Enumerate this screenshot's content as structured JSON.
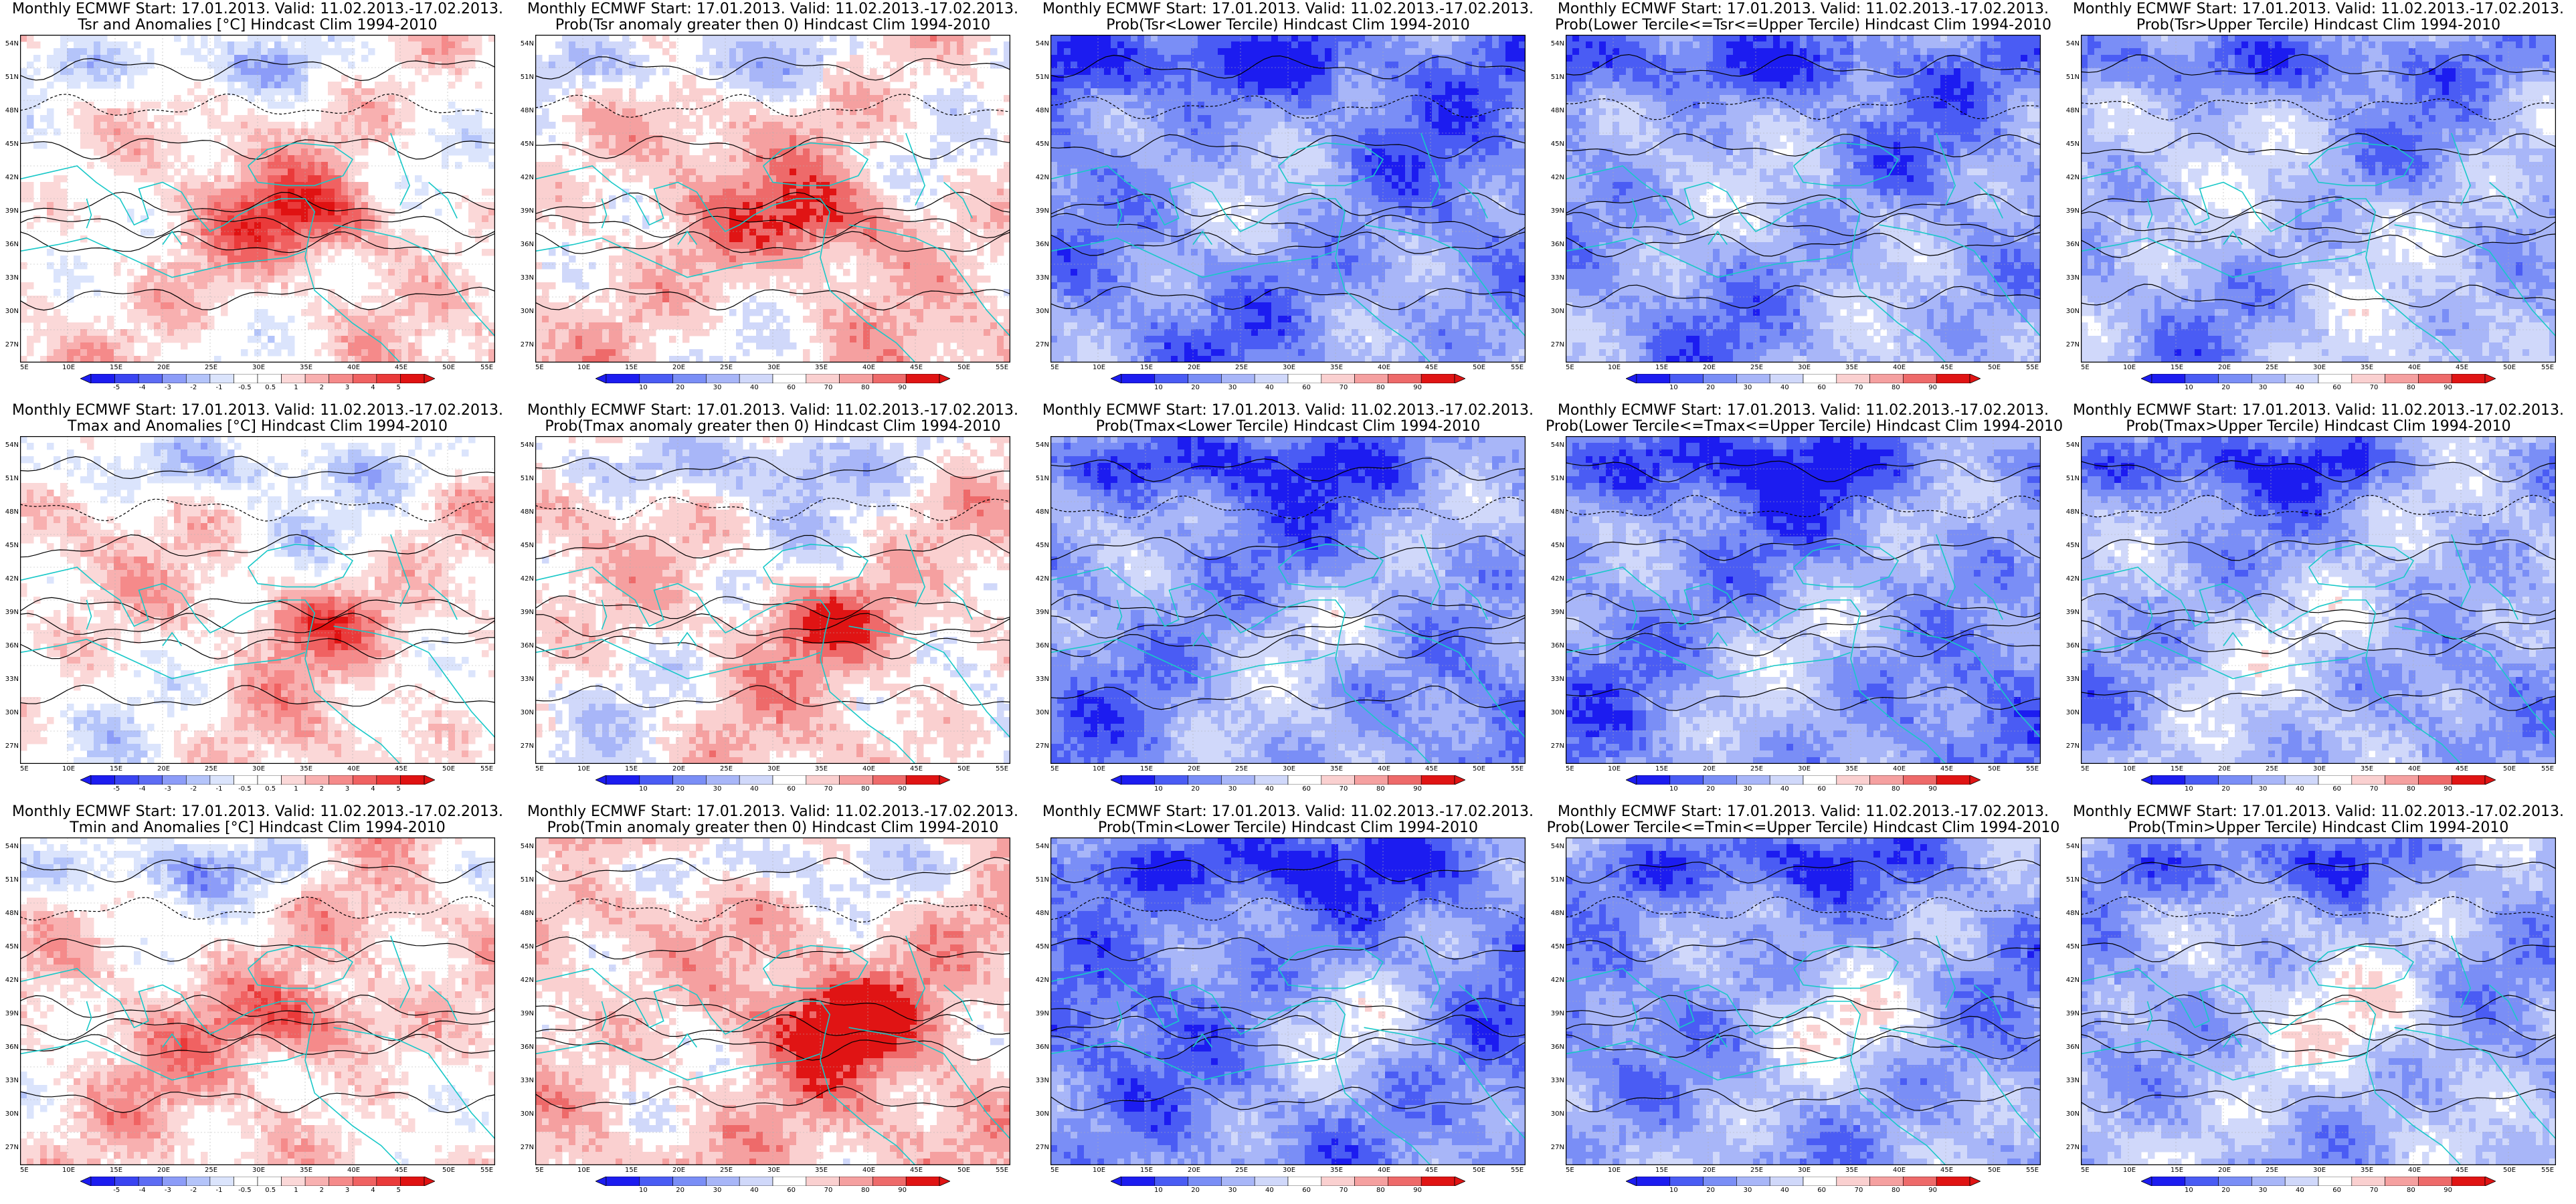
{
  "page": {
    "title_line1": "Monthly ECMWF Start: 17.01.2013. Valid: 11.02.2013.-17.02.2013.",
    "lon_labels": [
      "5E",
      "10E",
      "15E",
      "20E",
      "25E",
      "30E",
      "35E",
      "40E",
      "45E",
      "50E",
      "55E"
    ],
    "lat_labels": [
      "54N",
      "51N",
      "48N",
      "45N",
      "42N",
      "39N",
      "36N",
      "33N",
      "30N",
      "27N"
    ]
  },
  "colors": {
    "anomaly": [
      "#1c1cf0",
      "#3a44f2",
      "#5d6cf4",
      "#8c9cf8",
      "#b4c4fa",
      "#dbe4fc",
      "#ffffff",
      "#ffffff",
      "#fbd8d8",
      "#f8b0b0",
      "#f58a8a",
      "#f06262",
      "#ea3a3a",
      "#e01212"
    ],
    "prob": [
      "#1c1cf0",
      "#4a5cf4",
      "#7a8ef6",
      "#a8b6f8",
      "#d0d8fa",
      "#ffffff",
      "#fad0d0",
      "#f5a0a0",
      "#ee6a6a",
      "#e01414"
    ],
    "coast": "#19c8c8",
    "contour": "#000000"
  },
  "anomaly_ticks": [
    "-5",
    "-4",
    "-3",
    "-2",
    "-1",
    "-0.5",
    "0.5",
    "1",
    "2",
    "3",
    "4",
    "5"
  ],
  "prob_ticks": [
    "10",
    "20",
    "30",
    "40",
    "60",
    "70",
    "80",
    "90"
  ],
  "panels": [
    {
      "title": "Tsr and Anomalies [°C] Hindcast Clim 1994-2010",
      "kind": "anomaly",
      "bias": 0.3
    },
    {
      "title": "Prob(Tsr anomaly greater then 0) Hindcast Clim 1994-2010",
      "kind": "prob",
      "bias": 0.55
    },
    {
      "title": "Prob(Tsr<Lower Tercile) Hindcast Clim 1994-2010",
      "kind": "prob",
      "bias": -0.9
    },
    {
      "title": "Prob(Lower Tercile<=Tsr<=Upper Tercile) Hindcast Clim 1994-2010",
      "kind": "prob",
      "bias": -0.75
    },
    {
      "title": "Prob(Tsr>Upper Tercile) Hindcast Clim 1994-2010",
      "kind": "prob",
      "bias": -0.55
    },
    {
      "title": "Tmax and Anomalies [°C] Hindcast Clim 1994-2010",
      "kind": "anomaly",
      "bias": 0.2
    },
    {
      "title": "Prob(Tmax anomaly greater then 0) Hindcast Clim 1994-2010",
      "kind": "prob",
      "bias": 0.4
    },
    {
      "title": "Prob(Tmax<Lower Tercile) Hindcast Clim 1994-2010",
      "kind": "prob",
      "bias": -0.8
    },
    {
      "title": "Prob(Lower Tercile<=Tmax<=Upper Tercile) Hindcast Clim 1994-2010",
      "kind": "prob",
      "bias": -0.85
    },
    {
      "title": "Prob(Tmax>Upper Tercile) Hindcast Clim 1994-2010",
      "kind": "prob",
      "bias": -0.6
    },
    {
      "title": "Tmin and Anomalies [°C] Hindcast Clim 1994-2010",
      "kind": "anomaly",
      "bias": 0.35
    },
    {
      "title": "Prob(Tmin anomaly greater then 0) Hindcast Clim 1994-2010",
      "kind": "prob",
      "bias": 0.7
    },
    {
      "title": "Prob(Tmin<Lower Tercile) Hindcast Clim 1994-2010",
      "kind": "prob",
      "bias": -0.95
    },
    {
      "title": "Prob(Lower Tercile<=Tmin<=Upper Tercile) Hindcast Clim 1994-2010",
      "kind": "prob",
      "bias": -0.7
    },
    {
      "title": "Prob(Tmin>Upper Tercile) Hindcast Clim 1994-2010",
      "kind": "prob",
      "bias": -0.5
    }
  ]
}
